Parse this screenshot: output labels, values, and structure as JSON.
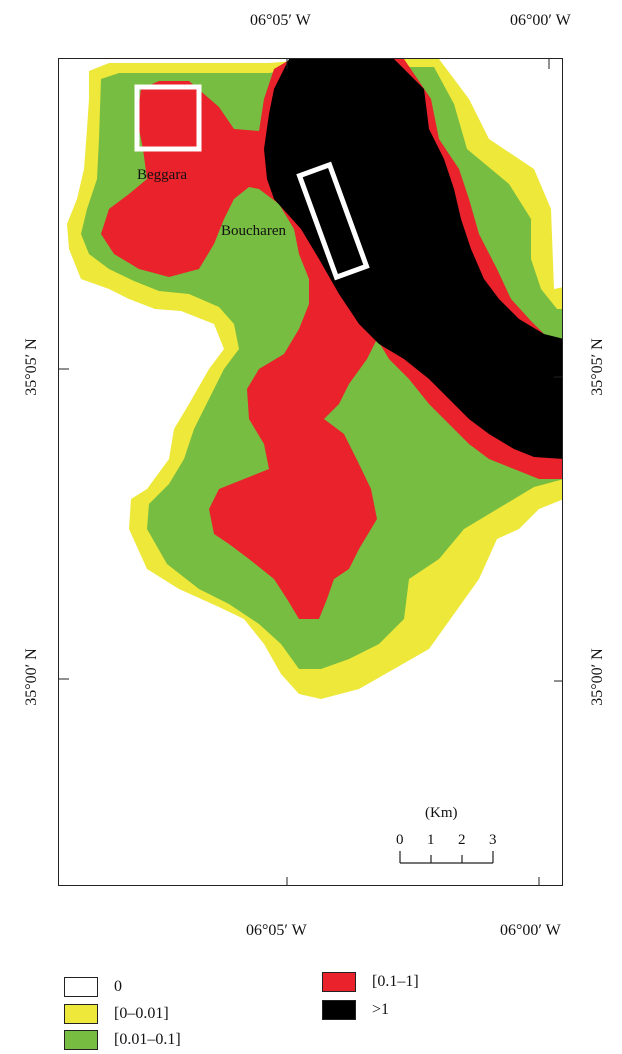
{
  "axes": {
    "top_left_lon": "06°05′ W",
    "top_right_lon": "06°00′ W",
    "bottom_left_lon": "06°05′ W",
    "bottom_right_lon": "06°00′ W",
    "left_upper_lat": "35°05′ N",
    "left_lower_lat": "35°00′ N",
    "right_upper_lat": "35°05′ N",
    "right_lower_lat": "35°00′ N"
  },
  "places": {
    "beggara": "Beggara",
    "boucharen": "Boucharen"
  },
  "scale": {
    "unit": "(Km)",
    "ticks": [
      "0",
      "1",
      "2",
      "3"
    ]
  },
  "legend": [
    {
      "label": "0",
      "color": "#ffffff"
    },
    {
      "label": "[0–0.01]",
      "color": "#ede83a"
    },
    {
      "label": "[0.01–0.1]",
      "color": "#76bd42"
    },
    {
      "label": "[0.1–1]",
      "color": "#e9222b"
    },
    {
      "label": ">1",
      "color": "#000000"
    }
  ]
}
